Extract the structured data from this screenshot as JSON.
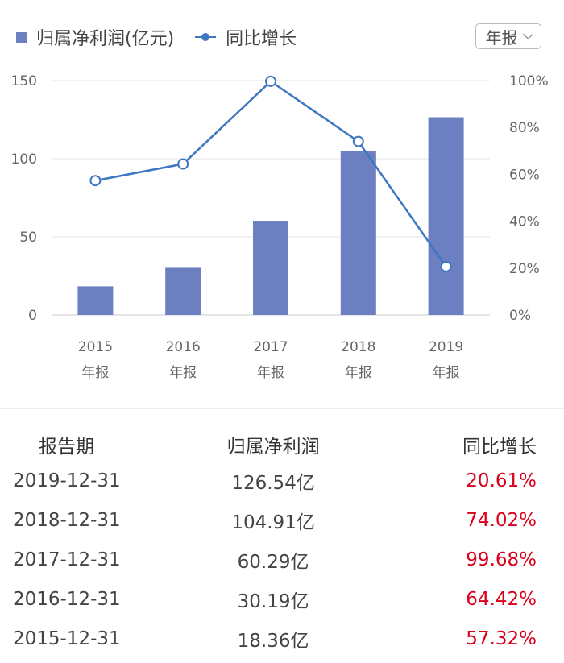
{
  "legend": {
    "bar_label": "归属净利润(亿元)",
    "line_label": "同比增长"
  },
  "period_select": {
    "value": "年报",
    "icon": "chevron-down-icon"
  },
  "colors": {
    "bar": "#6b7fc1",
    "line": "#3d77c2",
    "growth_text": "#d9001b"
  },
  "chart_data": {
    "type": "bar",
    "categories": [
      "2015",
      "2016",
      "2017",
      "2018",
      "2019"
    ],
    "category_suffix": "年报",
    "series": [
      {
        "name": "归属净利润(亿元)",
        "type": "bar",
        "axis": "left",
        "values": [
          18.36,
          30.19,
          60.29,
          104.91,
          126.54
        ]
      },
      {
        "name": "同比增长",
        "type": "line",
        "axis": "right",
        "values": [
          57.32,
          64.42,
          99.68,
          74.02,
          20.61
        ]
      }
    ],
    "ylim_left": [
      0,
      150
    ],
    "yticks_left": [
      "0",
      "50",
      "100",
      "150"
    ],
    "ylim_right": [
      0,
      100
    ],
    "yticks_right": [
      "0%",
      "20%",
      "40%",
      "60%",
      "80%",
      "100%"
    ],
    "grid": true,
    "legend_position": "top-left"
  },
  "table": {
    "headers": [
      "报告期",
      "归属净利润",
      "同比增长"
    ],
    "rows": [
      [
        "2019-12-31",
        "126.54亿",
        "20.61%"
      ],
      [
        "2018-12-31",
        "104.91亿",
        "74.02%"
      ],
      [
        "2017-12-31",
        "60.29亿",
        "99.68%"
      ],
      [
        "2016-12-31",
        "30.19亿",
        "64.42%"
      ],
      [
        "2015-12-31",
        "18.36亿",
        "57.32%"
      ]
    ]
  }
}
